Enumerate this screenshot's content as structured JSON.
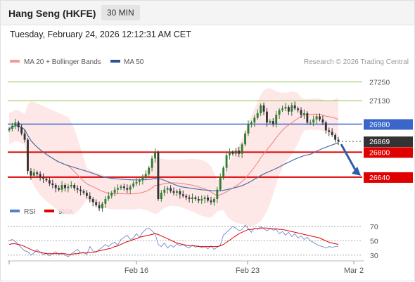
{
  "header": {
    "title": "Hang Seng (HKFE)",
    "timeframe": "30 MIN"
  },
  "datetime": "Tuesday, February 24, 2026 12:12:31 AM CET",
  "legend": {
    "ma20_bb": "MA 20 + Bollinger Bands",
    "ma50": "MA 50",
    "credit": "Research © 2026 Trading Central"
  },
  "rsi_legend": {
    "rsi": "RSI",
    "ma9": "9MA"
  },
  "colors": {
    "candle_up": "#2e7d32",
    "candle_down": "#333333",
    "ma20": "#ef7f7f",
    "bb_fill": "#fde3e3",
    "ma50": "#4a6fa5",
    "resistance": "#8bc34a",
    "pivot": "#3a66cc",
    "support": "#e00000",
    "arrow": "#2e5ea8",
    "rsi_line": "#5b7ec9",
    "rsi_ma": "#e00000"
  },
  "chart_data": [
    {
      "type": "candlestick",
      "title": "Hang Seng (HKFE)",
      "timeframe": "30 MIN",
      "x_ticks": [
        "Feb 16",
        "Feb 23",
        "Mar 2"
      ],
      "ylim": [
        26500,
        27320
      ],
      "level_lines": [
        {
          "value": 27250,
          "label": "27250",
          "kind": "resistance"
        },
        {
          "value": 27130,
          "label": "27130",
          "kind": "resistance"
        },
        {
          "value": 26980,
          "label": "26980",
          "kind": "pivot"
        },
        {
          "value": 26869,
          "label": "26869",
          "kind": "last"
        },
        {
          "value": 26800,
          "label": "26800",
          "kind": "support"
        },
        {
          "value": 26640,
          "label": "26640",
          "kind": "support"
        }
      ],
      "closes": [
        26950,
        26970,
        26990,
        26960,
        26920,
        26880,
        26680,
        26650,
        26670,
        26660,
        26640,
        26630,
        26620,
        26600,
        26590,
        26570,
        26560,
        26590,
        26570,
        26580,
        26590,
        26570,
        26560,
        26550,
        26540,
        26520,
        26500,
        26480,
        26460,
        26440,
        26470,
        26500,
        26520,
        26540,
        26560,
        26570,
        26580,
        26570,
        26560,
        26580,
        26600,
        26610,
        26620,
        26640,
        26660,
        26700,
        26760,
        26800,
        26500,
        26540,
        26560,
        26570,
        26550,
        26540,
        26550,
        26530,
        26520,
        26510,
        26500,
        26510,
        26500,
        26490,
        26500,
        26510,
        26490,
        26480,
        26500,
        26560,
        26640,
        26700,
        26780,
        26800,
        26790,
        26810,
        26790,
        26850,
        26920,
        26980,
        26990,
        27020,
        27050,
        27100,
        27060,
        26990,
        27000,
        26980,
        27040,
        27070,
        27080,
        27090,
        27060,
        27100,
        27080,
        27070,
        27040,
        27050,
        26990,
        26990,
        27010,
        27030,
        27010,
        26990,
        26940,
        26930,
        26910,
        26880,
        26869
      ]
    },
    {
      "type": "line",
      "title": "RSI",
      "y_ticks": [
        70,
        50,
        30
      ],
      "ylim": [
        20,
        80
      ],
      "series": [
        {
          "name": "RSI",
          "values": [
            50,
            52,
            49,
            45,
            40,
            36,
            35,
            30,
            33,
            38,
            34,
            31,
            33,
            29,
            32,
            35,
            31,
            33,
            30,
            28,
            32,
            35,
            38,
            33,
            34,
            31,
            42,
            36,
            34,
            38,
            41,
            45,
            42,
            46,
            48,
            44,
            52,
            55,
            58,
            52,
            54,
            60,
            55,
            62,
            66,
            68,
            64,
            60,
            45,
            42,
            47,
            40,
            44,
            41,
            46,
            43,
            45,
            42,
            40,
            44,
            41,
            43,
            40,
            42,
            39,
            43,
            38,
            41,
            44,
            58,
            62,
            66,
            70,
            68,
            64,
            66,
            72,
            67,
            62,
            68,
            66,
            70,
            67,
            64,
            68,
            65,
            66,
            60,
            63,
            58,
            62,
            56,
            60,
            54,
            57,
            52,
            55,
            50,
            48,
            45,
            43,
            42,
            40,
            42,
            41,
            42,
            42
          ]
        },
        {
          "name": "9MA",
          "values": [
            45,
            46,
            46,
            45,
            44,
            42,
            40,
            38,
            36,
            35,
            34,
            33,
            32,
            32,
            32,
            32,
            32,
            32,
            32,
            31,
            31,
            32,
            32,
            33,
            33,
            33,
            34,
            34,
            35,
            36,
            37,
            38,
            39,
            40,
            42,
            43,
            45,
            47,
            49,
            50,
            52,
            53,
            55,
            56,
            57,
            58,
            59,
            60,
            59,
            57,
            55,
            53,
            51,
            49,
            47,
            46,
            45,
            44,
            43,
            43,
            43,
            42,
            42,
            42,
            42,
            42,
            42,
            42,
            43,
            45,
            48,
            51,
            54,
            57,
            60,
            62,
            64,
            66,
            66,
            67,
            67,
            68,
            68,
            68,
            67,
            67,
            67,
            66,
            66,
            65,
            64,
            63,
            62,
            61,
            60,
            59,
            58,
            57,
            56,
            55,
            54,
            52,
            50,
            48,
            47,
            46,
            45
          ]
        }
      ]
    }
  ]
}
